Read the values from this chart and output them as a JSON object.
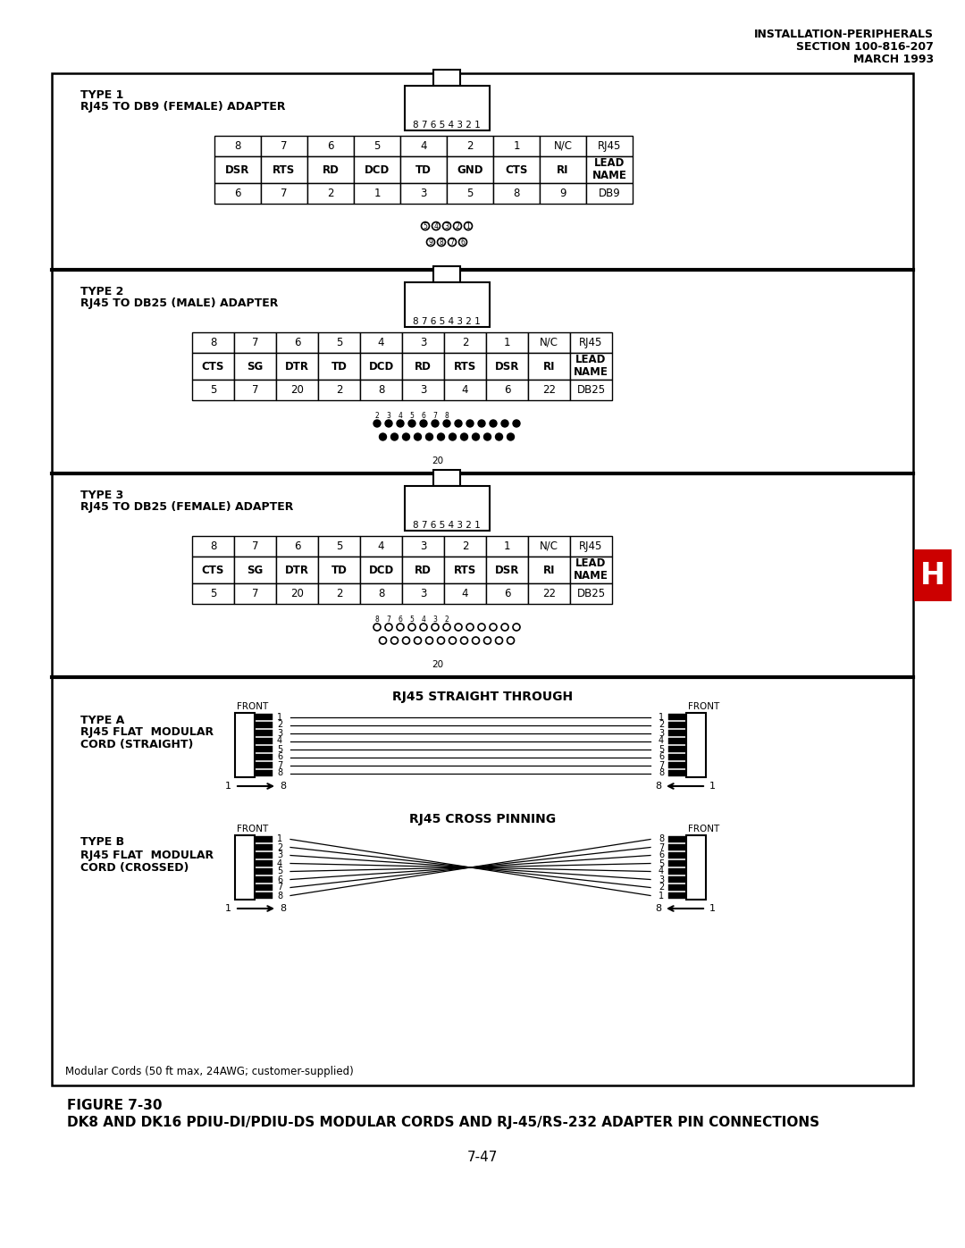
{
  "header_line1": "INSTALLATION-PERIPHERALS",
  "header_line2": "SECTION 100-816-207",
  "header_line3": "MARCH 1993",
  "figure_label": "FIGURE 7-30",
  "figure_title": "DK8 AND DK16 PDIU-DI/PDIU-DS MODULAR CORDS AND RJ-45/RS-232 ADAPTER PIN CONNECTIONS",
  "page_number": "7-47",
  "h_label": "H",
  "type1_title": "TYPE 1",
  "type1_subtitle": "RJ45 TO DB9 (FEMALE) ADAPTER",
  "type1_row1": [
    "8",
    "7",
    "6",
    "5",
    "4",
    "2",
    "1",
    "N/C",
    "RJ45"
  ],
  "type1_row2": [
    "DSR",
    "RTS",
    "RD",
    "DCD",
    "TD",
    "GND",
    "CTS",
    "RI",
    "LEAD\nNAME"
  ],
  "type1_row3": [
    "6",
    "7",
    "2",
    "1",
    "3",
    "5",
    "8",
    "9",
    "DB9"
  ],
  "type2_title": "TYPE 2",
  "type2_subtitle": "RJ45 TO DB25 (MALE) ADAPTER",
  "type2_row1": [
    "8",
    "7",
    "6",
    "5",
    "4",
    "3",
    "2",
    "1",
    "N/C",
    "RJ45"
  ],
  "type2_row2": [
    "CTS",
    "SG",
    "DTR",
    "TD",
    "DCD",
    "RD",
    "RTS",
    "DSR",
    "RI",
    "LEAD\nNAME"
  ],
  "type2_row3": [
    "5",
    "7",
    "20",
    "2",
    "8",
    "3",
    "4",
    "6",
    "22",
    "DB25"
  ],
  "type3_title": "TYPE 3",
  "type3_subtitle": "RJ45 TO DB25 (FEMALE) ADAPTER",
  "type3_row1": [
    "8",
    "7",
    "6",
    "5",
    "4",
    "3",
    "2",
    "1",
    "N/C",
    "RJ45"
  ],
  "type3_row2": [
    "CTS",
    "SG",
    "DTR",
    "TD",
    "DCD",
    "RD",
    "RTS",
    "DSR",
    "RI",
    "LEAD\nNAME"
  ],
  "type3_row3": [
    "5",
    "7",
    "20",
    "2",
    "8",
    "3",
    "4",
    "6",
    "22",
    "DB25"
  ],
  "typeA_title": "TYPE A",
  "typeA_subtitle1": "RJ45 FLAT  MODULAR",
  "typeA_subtitle2": "CORD (STRAIGHT)",
  "typeB_title": "TYPE B",
  "typeB_subtitle1": "RJ45 FLAT  MODULAR",
  "typeB_subtitle2": "CORD (CROSSED)",
  "straight_title": "RJ45 STRAIGHT THROUGH",
  "cross_title": "RJ45 CROSS PINNING",
  "modular_note": "Modular Cords (50 ft max, 24AWG; customer-supplied)",
  "bg_color": "#ffffff",
  "h_bg": "#cc0000"
}
